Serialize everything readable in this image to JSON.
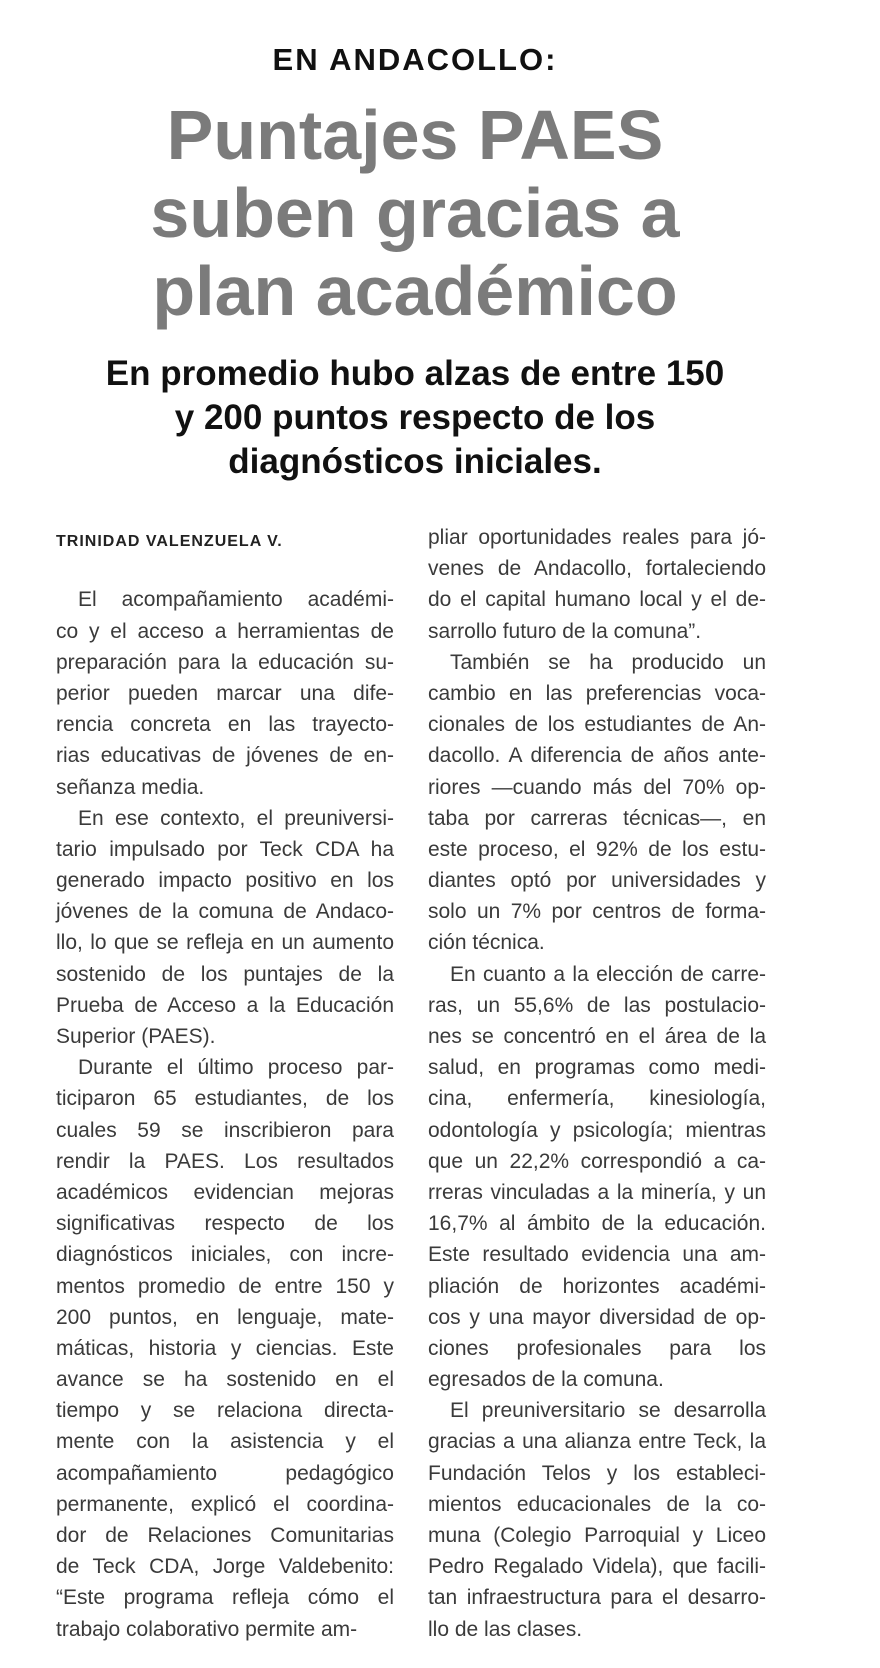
{
  "kicker": "EN ANDACOLLO:",
  "title": [
    "Puntajes PAES",
    "suben gracias a",
    "plan académico"
  ],
  "subtitle": [
    "En promedio hubo alzas de entre 150",
    "y 200 puntos respecto de los",
    "diagnósticos iniciales."
  ],
  "author": "TRINIDAD VALENZUELA V.",
  "columns": [
    {
      "paragraphs": [
        {
          "lines": [
            "El acompañamiento académi-",
            "co y el acceso a herramientas de",
            "preparación para la educación su-",
            "perior pueden marcar una dife-",
            "rencia concreta en las trayecto-",
            "rias educativas de jóvenes de en-",
            "señanza media."
          ]
        },
        {
          "lines": [
            "En ese contexto, el preuniversi-",
            "tario impulsado por Teck CDA ha",
            "generado impacto positivo en los",
            "jóvenes de la comuna de Andaco-",
            "llo, lo que se refleja en un aumento",
            "sostenido de los puntajes de la",
            "Prueba de Acceso a la Educación",
            "Superior (PAES)."
          ]
        },
        {
          "lines": [
            "Durante el último proceso par-",
            "ticiparon 65 estudiantes, de los",
            "cuales 59 se inscribieron para",
            "rendir la PAES. Los resultados",
            "académicos evidencian mejoras",
            "significativas respecto de los",
            "diagnósticos iniciales, con incre-",
            "mentos promedio de entre 150 y",
            "200 puntos, en lenguaje, mate-",
            "máticas, historia y ciencias. Este",
            "avance se ha sostenido en el",
            "tiempo y se relaciona directa-",
            "mente con la asistencia y el",
            "acompañamiento pedagógico",
            "permanente, explicó el coordina-",
            "dor de Relaciones Comunitarias",
            "de Teck CDA, Jorge Valdebenito:",
            "“Este programa refleja cómo el",
            "trabajo colaborativo permite am-"
          ]
        }
      ]
    },
    {
      "paragraphs": [
        {
          "lines": [
            "pliar oportunidades reales para jó-",
            "venes de Andacollo, fortaleciendo",
            "do el capital humano local y el de-",
            "sarrollo futuro de la comuna”."
          ]
        },
        {
          "lines": [
            "También se ha producido un",
            "cambio en las preferencias voca-",
            "cionales de los estudiantes de An-",
            "dacollo. A diferencia de años ante-",
            "riores —cuando más del 70% op-",
            "taba por carreras técnicas—, en",
            "este proceso, el 92% de los estu-",
            "diantes optó por universidades y",
            "solo un 7% por centros de forma-",
            "ción técnica."
          ]
        },
        {
          "lines": [
            "En cuanto a la elección de carre-",
            "ras, un 55,6% de las postulacio-",
            "nes se concentró en el área de la",
            "salud, en programas como medi-",
            "cina, enfermería, kinesiología,",
            "odontología y psicología; mientras",
            "que un 22,2% correspondió a ca-",
            "rreras vinculadas a la minería, y un",
            "16,7% al ámbito de la educación.",
            "Este resultado evidencia una am-",
            "pliación de horizontes académi-",
            "cos y una mayor diversidad de op-",
            "ciones profesionales para los",
            "egresados de la comuna."
          ]
        },
        {
          "lines": [
            "El preuniversitario se desarrolla",
            "gracias a una alianza entre Teck, la",
            "Fundación Telos y los estableci-",
            "mientos educacionales de la co-",
            "muna (Colegio Parroquial y Liceo",
            "Pedro Regalado Videla), que facili-",
            "tan infraestructura para el desarro-",
            "llo de las clases."
          ]
        }
      ]
    }
  ]
}
